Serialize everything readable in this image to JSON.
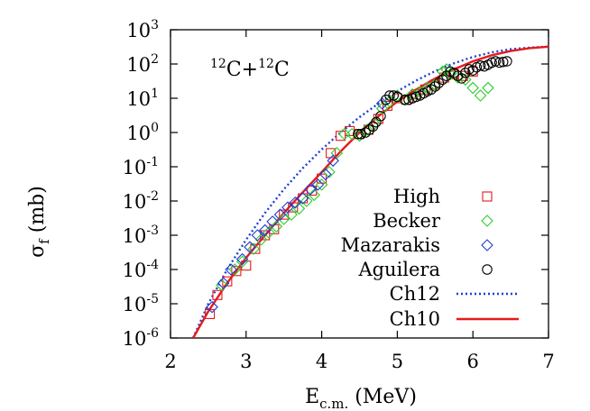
{
  "chart_data": {
    "type": "scatter",
    "panel_label": {
      "base1": "C+",
      "sup1": "12",
      "base2": "C",
      "sup2": "12"
    },
    "xlabel": {
      "base": "E",
      "sub": "c.m.",
      "rest": " (MeV)"
    },
    "ylabel": {
      "base": "σ",
      "sub": "f",
      "rest": " (mb)"
    },
    "xlim": [
      2,
      7
    ],
    "ylim": [
      1e-06,
      1000
    ],
    "yscale": "log",
    "grid": false,
    "legend_position": "bottom-right",
    "x_ticks": [
      "2",
      "3",
      "4",
      "5",
      "6",
      "7"
    ],
    "x_tick_values": [
      2,
      3,
      4,
      5,
      6,
      7
    ],
    "y_ticks": [
      {
        "base": "10",
        "exp": "-6"
      },
      {
        "base": "10",
        "exp": "-5"
      },
      {
        "base": "10",
        "exp": "-4"
      },
      {
        "base": "10",
        "exp": "-3"
      },
      {
        "base": "10",
        "exp": "-2"
      },
      {
        "base": "10",
        "exp": "-1"
      },
      {
        "base": "10",
        "exp": "0"
      },
      {
        "base": "10",
        "exp": "1"
      },
      {
        "base": "10",
        "exp": "2"
      },
      {
        "base": "10",
        "exp": "3"
      }
    ],
    "y_tick_exponents": [
      -6,
      -5,
      -4,
      -3,
      -2,
      -1,
      0,
      1,
      2,
      3
    ],
    "series": [
      {
        "name": "High",
        "marker": "square",
        "color": "#e41a1c",
        "x": [
          2.52,
          2.62,
          2.75,
          2.87,
          3.0,
          3.12,
          3.25,
          3.37,
          3.5,
          3.62,
          3.75,
          3.87,
          4.0,
          4.12,
          4.25,
          4.37,
          4.5,
          4.62,
          4.75,
          4.87,
          5.0,
          5.12,
          5.25,
          5.37,
          5.5,
          5.62,
          5.75,
          5.87,
          6.0
        ],
        "y": [
          5e-06,
          1.8e-05,
          4.5e-05,
          9e-05,
          0.00013,
          0.0004,
          0.001,
          0.0015,
          0.004,
          0.0065,
          0.012,
          0.02,
          0.045,
          0.25,
          0.8,
          1.1,
          0.9,
          1.2,
          2.5,
          6,
          10,
          9,
          13,
          18,
          25,
          40,
          50,
          45,
          60
        ]
      },
      {
        "name": "Becker",
        "marker": "diamond",
        "color": "#2ecc2e",
        "x": [
          2.68,
          2.85,
          2.95,
          3.1,
          3.2,
          3.3,
          3.4,
          3.5,
          3.6,
          3.7,
          3.8,
          3.9,
          4.0,
          4.1,
          4.2,
          4.3,
          4.4,
          4.5,
          4.6,
          4.7,
          4.8,
          4.9,
          5.0,
          5.1,
          5.2,
          5.3,
          5.4,
          5.5,
          5.6,
          5.65,
          5.7,
          5.8,
          5.9,
          6.0,
          6.1,
          6.2
        ],
        "y": [
          3.5e-05,
          0.0001,
          0.00017,
          0.0004,
          0.00075,
          0.0012,
          0.0018,
          0.003,
          0.004,
          0.006,
          0.01,
          0.015,
          0.03,
          0.07,
          0.25,
          0.9,
          0.9,
          0.8,
          1.2,
          1.8,
          5,
          8,
          12,
          9,
          13,
          15,
          20,
          25,
          60,
          70,
          50,
          40,
          35,
          20,
          12,
          20
        ]
      },
      {
        "name": "Mazarakis",
        "marker": "diamond",
        "color": "#1f3fd1",
        "x": [
          2.55,
          2.7,
          2.8,
          2.95,
          3.05,
          3.15,
          3.25,
          3.35,
          3.45,
          3.55,
          3.65,
          3.75,
          3.85,
          3.95,
          4.05,
          4.15,
          4.8
        ],
        "y": [
          8e-06,
          4e-05,
          0.0001,
          0.0002,
          0.00045,
          0.001,
          0.0014,
          0.0025,
          0.004,
          0.0065,
          0.009,
          0.012,
          0.022,
          0.03,
          0.06,
          0.15,
          7
        ]
      },
      {
        "name": "Aguilera",
        "marker": "circle",
        "color": "#000000",
        "x": [
          4.48,
          4.52,
          4.58,
          4.63,
          4.68,
          4.72,
          4.78,
          4.85,
          4.9,
          4.95,
          5.0,
          5.1,
          5.15,
          5.2,
          5.25,
          5.3,
          5.35,
          5.4,
          5.45,
          5.5,
          5.55,
          5.6,
          5.65,
          5.7,
          5.75,
          5.8,
          5.85,
          5.9,
          5.95,
          6.0,
          6.05,
          6.1,
          6.15,
          6.2,
          6.25,
          6.3,
          6.35,
          6.4,
          6.45
        ],
        "y": [
          0.9,
          0.9,
          1.0,
          1.2,
          1.5,
          2.0,
          3,
          9,
          12,
          12,
          11,
          9,
          9,
          10,
          11,
          12,
          14,
          16,
          18,
          22,
          28,
          35,
          45,
          60,
          55,
          45,
          38,
          55,
          70,
          65,
          80,
          90,
          85,
          95,
          110,
          120,
          110,
          115,
          120
        ]
      },
      {
        "name": "Ch12",
        "style": "dotted-line",
        "color": "#1f3fd1",
        "x": [
          2.3,
          2.5,
          2.75,
          3.0,
          3.25,
          3.5,
          3.75,
          4.0,
          4.25,
          4.5,
          4.75,
          5.0,
          5.25,
          5.5,
          5.75,
          6.0,
          6.25,
          6.5,
          6.75,
          7.0
        ],
        "y": [
          1e-06,
          1e-05,
          0.0001,
          0.00074,
          0.0045,
          0.022,
          0.091,
          0.32,
          1.0,
          2.8,
          7.0,
          16,
          33,
          62,
          105,
          160,
          220,
          270,
          300,
          320
        ]
      },
      {
        "name": "Ch10",
        "style": "solid-line",
        "color": "#e41a1c",
        "x": [
          2.3,
          2.5,
          2.75,
          3.0,
          3.25,
          3.5,
          3.75,
          4.0,
          4.25,
          4.5,
          4.75,
          5.0,
          5.25,
          5.5,
          5.75,
          6.0,
          6.25,
          6.5,
          6.75,
          7.0
        ],
        "y": [
          1e-06,
          6e-06,
          4e-05,
          0.00022,
          0.001,
          0.0045,
          0.018,
          0.07,
          0.28,
          1.0,
          3.0,
          8.0,
          18,
          38,
          70,
          120,
          180,
          240,
          290,
          320
        ]
      }
    ]
  }
}
